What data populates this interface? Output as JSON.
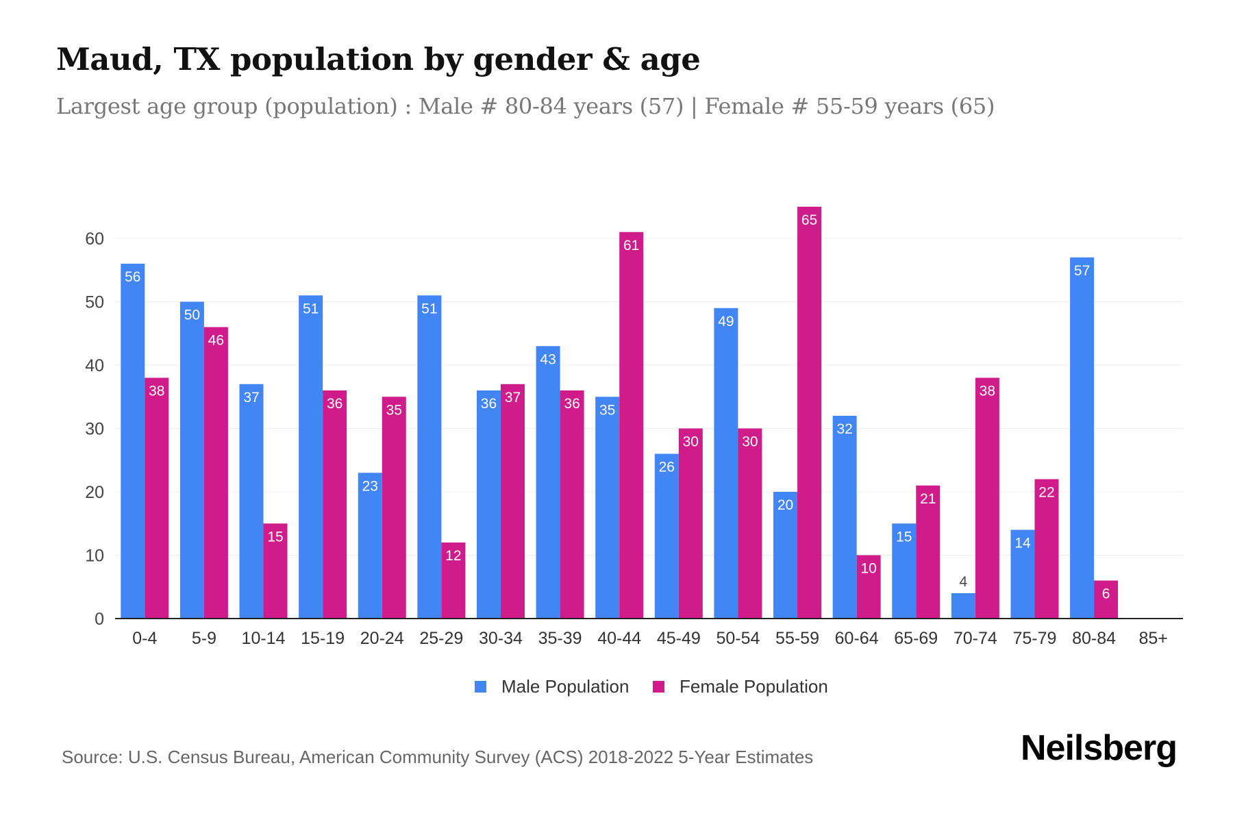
{
  "title": "Maud, TX population by gender & age",
  "subtitle": "Largest age group (population) : Male # 80-84 years (57) | Female # 55-59 years (65)",
  "source": "Source: U.S. Census Bureau, American Community Survey (ACS) 2018-2022 5-Year Estimates",
  "logo": "Neilsberg",
  "chart_data": {
    "type": "bar",
    "categories": [
      "0-4",
      "5-9",
      "10-14",
      "15-19",
      "20-24",
      "25-29",
      "30-34",
      "35-39",
      "40-44",
      "45-49",
      "50-54",
      "55-59",
      "60-64",
      "65-69",
      "70-74",
      "75-79",
      "80-84",
      "85+"
    ],
    "series": [
      {
        "name": "Male Population",
        "color": "#4285f4",
        "values": [
          56,
          50,
          37,
          51,
          23,
          51,
          36,
          43,
          35,
          26,
          49,
          20,
          32,
          15,
          4,
          14,
          57,
          null
        ]
      },
      {
        "name": "Female Population",
        "color": "#d01c8b",
        "values": [
          38,
          46,
          15,
          36,
          35,
          12,
          37,
          36,
          61,
          30,
          30,
          65,
          10,
          21,
          38,
          22,
          6,
          null
        ]
      }
    ],
    "yticks": [
      0,
      10,
      20,
      30,
      40,
      50,
      60
    ],
    "ylim": [
      0,
      65
    ],
    "grid": true,
    "legend": "bottom-center"
  }
}
